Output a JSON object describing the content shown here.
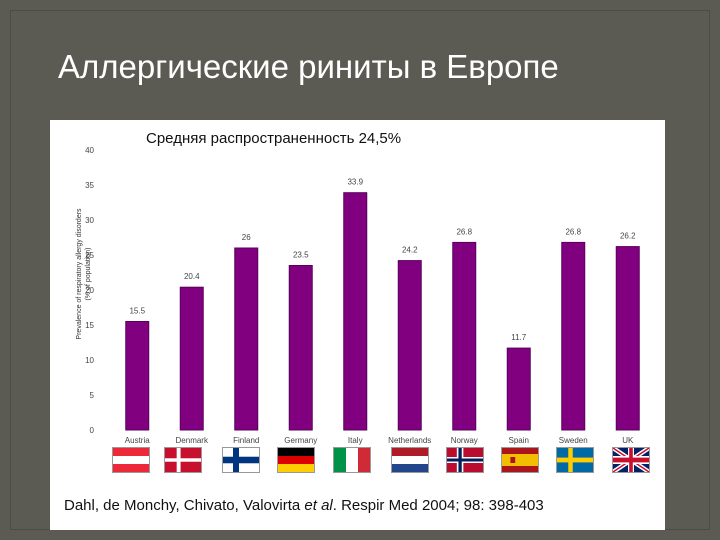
{
  "slide": {
    "title": "Аллергические риниты в Европе",
    "subtitle": "Средняя распространенность 24,5%",
    "citation_prefix": "Dahl, de Monchy, Chivato, Valovirta ",
    "citation_etal": "et al",
    "citation_suffix": ". Respir Med 2004; 98: 398-403"
  },
  "chart_data": {
    "type": "bar",
    "ylabel_lines": [
      "Prevalence of respiratory allergy disorders",
      "(% of population)"
    ],
    "categories": [
      "Austria",
      "Denmark",
      "Finland",
      "Germany",
      "Italy",
      "Netherlands",
      "Norway",
      "Spain",
      "Sweden",
      "UK"
    ],
    "values": [
      15.5,
      20.4,
      26,
      23.5,
      33.9,
      24.2,
      26.8,
      11.7,
      26.8,
      26.2
    ],
    "value_labels": [
      "15.5",
      "20.4",
      "26",
      "23.5",
      "33.9",
      "24.2",
      "26.8",
      "11.7",
      "26.8",
      "26.2"
    ],
    "yticks": [
      0,
      5,
      10,
      15,
      20,
      25,
      30,
      35,
      40
    ],
    "ylim": [
      0,
      40
    ],
    "bar_color": "#800080",
    "grid": false
  },
  "flags": [
    "austria-flag-icon",
    "denmark-flag-icon",
    "finland-flag-icon",
    "germany-flag-icon",
    "italy-flag-icon",
    "netherlands-flag-icon",
    "norway-flag-icon",
    "spain-flag-icon",
    "sweden-flag-icon",
    "uk-flag-icon"
  ],
  "colors": {
    "background": "#5b5b53",
    "panel": "#ffffff",
    "title": "#ffffff"
  }
}
